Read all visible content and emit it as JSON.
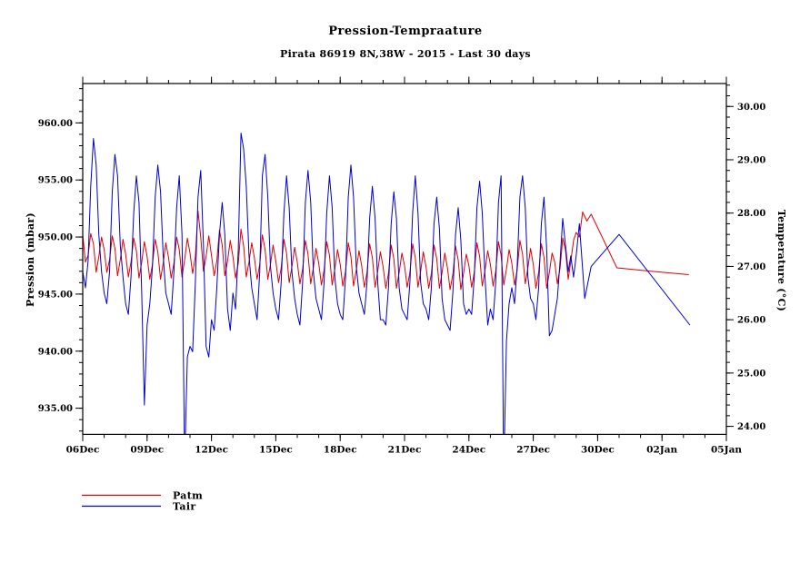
{
  "page": {
    "background": "#ffffff"
  },
  "chart_data": {
    "type": "line",
    "title": "Pression-Tempraature",
    "subtitle": "Pirata 86919 8N,38W - 2015 - Last 30 days",
    "grid": false,
    "legend_position": "bottom-left",
    "x_axis": {
      "min_day": 0,
      "max_day": 30,
      "minor_step_days": 1,
      "majors": [
        {
          "day": 0,
          "label": "06Dec"
        },
        {
          "day": 3,
          "label": "09Dec"
        },
        {
          "day": 6,
          "label": "12Dec"
        },
        {
          "day": 9,
          "label": "15Dec"
        },
        {
          "day": 12,
          "label": "18Dec"
        },
        {
          "day": 15,
          "label": "21Dec"
        },
        {
          "day": 18,
          "label": "24Dec"
        },
        {
          "day": 21,
          "label": "27Dec"
        },
        {
          "day": 24,
          "label": "30Dec"
        },
        {
          "day": 27,
          "label": "02Jan"
        },
        {
          "day": 30,
          "label": "05Jan"
        }
      ]
    },
    "left_axis": {
      "title": "Pression (mbar)",
      "min": 932.71,
      "max": 963.45,
      "minor_step": 1,
      "majors": [
        {
          "value": 935,
          "label": "935.00"
        },
        {
          "value": 940,
          "label": "940.00"
        },
        {
          "value": 945,
          "label": "945.00"
        },
        {
          "value": 950,
          "label": "950.00"
        },
        {
          "value": 955,
          "label": "955.00"
        },
        {
          "value": 960,
          "label": "960.00"
        }
      ]
    },
    "right_axis": {
      "title": "Temperature (°C)",
      "min": 23.85,
      "max": 30.43,
      "minor_step": 0.2,
      "majors": [
        {
          "value": 24,
          "label": "24.00"
        },
        {
          "value": 25,
          "label": "25.00"
        },
        {
          "value": 26,
          "label": "26.00"
        },
        {
          "value": 27,
          "label": "27.00"
        },
        {
          "value": 28,
          "label": "28.00"
        },
        {
          "value": 29,
          "label": "29.00"
        },
        {
          "value": 30,
          "label": "30.00"
        }
      ]
    },
    "series": [
      {
        "name": "Patm",
        "color": "#e00000",
        "axis": "left",
        "unit": "mbar",
        "start_day": 0,
        "step_days": 0.125,
        "values": [
          950.2,
          947.8,
          948.4,
          950.3,
          949.4,
          946.9,
          948.3,
          950.0,
          948.9,
          946.9,
          948.0,
          950.1,
          949.0,
          946.6,
          948.0,
          949.8,
          948.5,
          946.5,
          947.8,
          949.9,
          948.8,
          946.4,
          947.8,
          949.6,
          948.3,
          946.3,
          947.6,
          949.8,
          948.7,
          946.3,
          947.7,
          949.5,
          948.2,
          946.4,
          947.7,
          950.0,
          948.9,
          946.5,
          948.0,
          949.9,
          948.6,
          946.8,
          948.3,
          952.3,
          950.0,
          947.0,
          948.3,
          950.1,
          948.4,
          946.6,
          947.9,
          950.6,
          949.3,
          946.6,
          947.9,
          949.7,
          948.3,
          946.4,
          947.7,
          950.7,
          949.2,
          946.5,
          947.8,
          949.5,
          948.2,
          946.3,
          947.6,
          950.2,
          948.9,
          946.3,
          947.6,
          949.3,
          947.9,
          946.0,
          947.3,
          949.8,
          948.6,
          946.0,
          947.4,
          949.1,
          947.8,
          945.9,
          947.2,
          949.7,
          948.5,
          945.9,
          947.3,
          949.0,
          947.7,
          945.8,
          947.1,
          949.6,
          948.4,
          945.8,
          947.2,
          948.9,
          947.6,
          945.7,
          947.0,
          949.5,
          948.3,
          945.7,
          947.1,
          948.8,
          947.5,
          945.6,
          946.9,
          949.4,
          948.2,
          945.6,
          947.0,
          948.7,
          947.4,
          945.5,
          946.8,
          949.3,
          948.1,
          945.5,
          946.9,
          948.6,
          947.5,
          945.6,
          946.9,
          949.4,
          948.2,
          945.6,
          947.0,
          948.7,
          947.4,
          945.5,
          946.8,
          949.3,
          948.1,
          945.5,
          946.9,
          948.6,
          947.3,
          945.4,
          946.7,
          949.2,
          948.0,
          945.4,
          946.8,
          948.5,
          947.5,
          945.6,
          946.9,
          949.5,
          948.3,
          945.7,
          947.1,
          948.8,
          947.6,
          945.7,
          947.0,
          949.6,
          948.4,
          945.8,
          947.2,
          948.9,
          947.7,
          945.8,
          947.1,
          949.7,
          948.5,
          945.9,
          947.3,
          949.0,
          947.6,
          945.5,
          946.9,
          949.4,
          948.2,
          945.5,
          946.9,
          948.6,
          947.8,
          945.9,
          947.3,
          949.9,
          948.9,
          946.3,
          947.9,
          949.7
        ],
        "tail_points": [
          [
            23.0,
            950.4
          ],
          [
            23.15,
            950.0
          ],
          [
            23.3,
            952.2
          ],
          [
            23.5,
            951.4
          ],
          [
            23.7,
            952.0
          ],
          [
            24.9,
            947.3
          ],
          [
            26.5,
            947.0
          ],
          [
            28.25,
            946.7
          ]
        ]
      },
      {
        "name": "Tair",
        "color": "#0000d0",
        "axis": "right",
        "unit": "°C",
        "start_day": 0,
        "step_days": 0.125,
        "values": [
          26.9,
          26.6,
          27.1,
          28.5,
          29.4,
          28.9,
          27.6,
          26.9,
          26.5,
          26.3,
          26.9,
          28.4,
          29.1,
          28.7,
          27.4,
          26.8,
          26.3,
          26.1,
          26.8,
          28.0,
          28.7,
          28.2,
          26.5,
          24.4,
          25.9,
          26.3,
          27.0,
          28.3,
          28.9,
          28.4,
          27.2,
          26.5,
          26.3,
          26.1,
          26.9,
          28.1,
          28.7,
          27.6,
          23.3,
          25.3,
          25.5,
          25.4,
          26.7,
          28.3,
          28.8,
          27.4,
          25.5,
          25.3,
          26.0,
          25.8,
          26.6,
          27.6,
          28.2,
          27.6,
          26.2,
          25.8,
          26.5,
          26.2,
          27.3,
          29.5,
          29.2,
          28.5,
          27.2,
          26.6,
          26.3,
          26.0,
          26.9,
          28.7,
          29.1,
          28.3,
          27.0,
          26.5,
          26.2,
          26.0,
          26.7,
          28.0,
          28.7,
          28.1,
          26.9,
          26.4,
          26.1,
          25.9,
          26.7,
          28.2,
          28.8,
          28.2,
          26.9,
          26.4,
          26.2,
          26.0,
          26.7,
          28.0,
          28.7,
          28.1,
          26.8,
          26.3,
          26.1,
          26.0,
          26.8,
          28.3,
          28.9,
          28.3,
          27.0,
          26.5,
          26.3,
          26.1,
          26.7,
          27.9,
          28.5,
          27.9,
          26.7,
          26.0,
          26.0,
          25.9,
          26.6,
          27.8,
          28.4,
          27.9,
          26.6,
          26.2,
          26.1,
          26.0,
          26.7,
          28.0,
          28.7,
          28.0,
          26.7,
          26.3,
          26.2,
          26.0,
          26.6,
          27.8,
          28.3,
          27.7,
          26.4,
          26.0,
          25.9,
          25.8,
          26.5,
          27.6,
          28.1,
          27.5,
          26.3,
          26.1,
          26.2,
          26.1,
          26.8,
          28.1,
          28.6,
          28.0,
          26.8,
          25.9,
          26.2,
          26.0,
          26.7,
          28.2,
          28.7,
          23.1,
          25.6,
          26.3,
          26.6,
          26.3,
          27.0,
          28.3,
          28.7,
          28.1,
          26.8,
          26.4,
          26.3,
          26.0,
          26.6,
          27.8,
          28.3,
          27.3,
          25.7,
          25.8,
          26.1,
          26.4,
          27.1,
          27.9,
          27.4,
          26.9,
          27.2,
          26.8
        ],
        "tail_points": [
          [
            23.0,
            27.2
          ],
          [
            23.15,
            27.8
          ],
          [
            23.4,
            26.4
          ],
          [
            23.7,
            27.0
          ],
          [
            25.0,
            27.6
          ],
          [
            28.3,
            25.9
          ]
        ]
      }
    ]
  }
}
